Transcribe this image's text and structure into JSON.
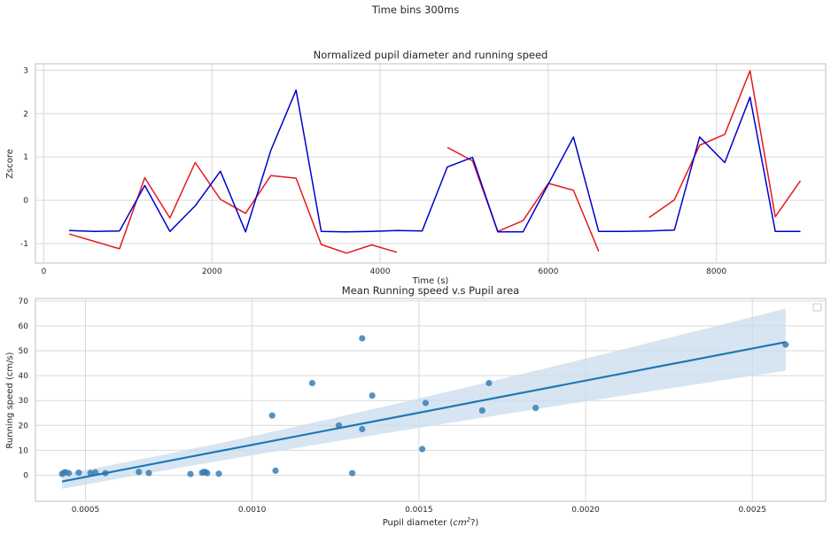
{
  "suptitle": "Time bins 300ms",
  "colors": {
    "pupil": "#e41a1c",
    "speed": "#0000cd",
    "scatter": "#3a7fb4",
    "fit": "#1f77b4",
    "band": "#c9dcee"
  },
  "chart_data": [
    {
      "type": "line",
      "title": "Normalized pupil diameter and running speed",
      "xlabel": "Time (s)",
      "ylabel": "Zscore",
      "xlim": [
        -100,
        9300
      ],
      "ylim": [
        -1.45,
        3.15
      ],
      "xticks": [
        0,
        2000,
        4000,
        6000,
        8000
      ],
      "yticks": [
        -1,
        0,
        1,
        2,
        3
      ],
      "grid": true,
      "series": [
        {
          "color": "#e41a1c",
          "x": [
            300,
            600,
            900,
            1200,
            1500,
            1800,
            2100,
            2400,
            2700,
            3000,
            3300,
            3600,
            3900,
            4200,
            4500,
            4800,
            5100,
            5400,
            5700,
            6000,
            6300,
            6600,
            6900,
            7200,
            7500,
            7800,
            8100,
            8400,
            8700,
            9000
          ],
          "y": [
            -0.78,
            -0.95,
            -1.12,
            0.52,
            -0.41,
            0.87,
            0.02,
            -0.3,
            0.57,
            0.51,
            -1.02,
            -1.22,
            -1.03,
            -1.2,
            null,
            1.22,
            0.91,
            -0.72,
            -0.47,
            0.39,
            0.23,
            -1.18,
            null,
            -0.4,
            0.01,
            1.27,
            1.52,
            2.99,
            -0.38,
            0.45
          ]
        },
        {
          "color": "#0000cd",
          "x": [
            300,
            600,
            900,
            1200,
            1500,
            1800,
            2100,
            2400,
            2700,
            3000,
            3300,
            3600,
            3900,
            4200,
            4500,
            4800,
            5100,
            5400,
            5700,
            6000,
            6300,
            6600,
            6900,
            7200,
            7500,
            7800,
            8100,
            8400,
            8700,
            9000
          ],
          "y": [
            -0.7,
            -0.72,
            -0.71,
            0.34,
            -0.72,
            -0.13,
            0.67,
            -0.73,
            1.15,
            2.54,
            -0.72,
            -0.73,
            -0.72,
            -0.7,
            -0.71,
            0.77,
            0.99,
            -0.73,
            -0.73,
            0.37,
            1.46,
            -0.72,
            -0.72,
            -0.71,
            -0.69,
            1.46,
            0.87,
            2.38,
            -0.72,
            -0.72
          ]
        }
      ]
    },
    {
      "type": "scatter",
      "title": "Mean Running speed v.s Pupil area",
      "xlabel": "Pupil diameter (",
      "xlabel_unit_base": "cm",
      "xlabel_unit_exp": "2",
      "xlabel_suffix": "?)",
      "ylabel": "Running speed (cm/s)",
      "xlim": [
        0.00035,
        0.00272
      ],
      "ylim": [
        -10.5,
        71
      ],
      "xticks": [
        "0.0005",
        "0.0010",
        "0.0015",
        "0.0020",
        "0.0025"
      ],
      "xtick_values": [
        0.0005,
        0.001,
        0.0015,
        0.002,
        0.0025
      ],
      "yticks": [
        0,
        10,
        20,
        30,
        40,
        50,
        60,
        70
      ],
      "grid": true,
      "legend": "top-right",
      "points": {
        "x": [
          0.00043,
          0.000435,
          0.00044,
          0.00045,
          0.00048,
          0.000515,
          0.00053,
          0.00056,
          0.00066,
          0.00069,
          0.000815,
          0.00085,
          0.000855,
          0.00086,
          0.000865,
          0.0009,
          0.00106,
          0.00107,
          0.00118,
          0.00126,
          0.0013,
          0.00133,
          0.00133,
          0.00136,
          0.00152,
          0.00151,
          0.00169,
          0.00171,
          0.00185,
          0.0026
        ],
        "y": [
          0.5,
          1.0,
          1.2,
          0.8,
          1.0,
          0.9,
          1.1,
          0.8,
          1.3,
          0.9,
          0.5,
          1.0,
          1.3,
          1.2,
          0.8,
          0.6,
          24,
          1.8,
          37,
          20,
          0.8,
          55,
          18.5,
          32,
          29,
          10.5,
          26,
          37,
          27,
          52.5
        ]
      },
      "fit": {
        "x": [
          0.00043,
          0.0026
        ],
        "y": [
          -2.5,
          53.5
        ]
      },
      "band": {
        "x": [
          0.00043,
          0.0026
        ],
        "lower": [
          -5.5,
          42
        ],
        "upper": [
          0.5,
          67
        ],
        "mid_x": 0.00115,
        "mid_lower": [
          13.0
        ],
        "mid_upper": [
          17.0
        ]
      }
    }
  ]
}
